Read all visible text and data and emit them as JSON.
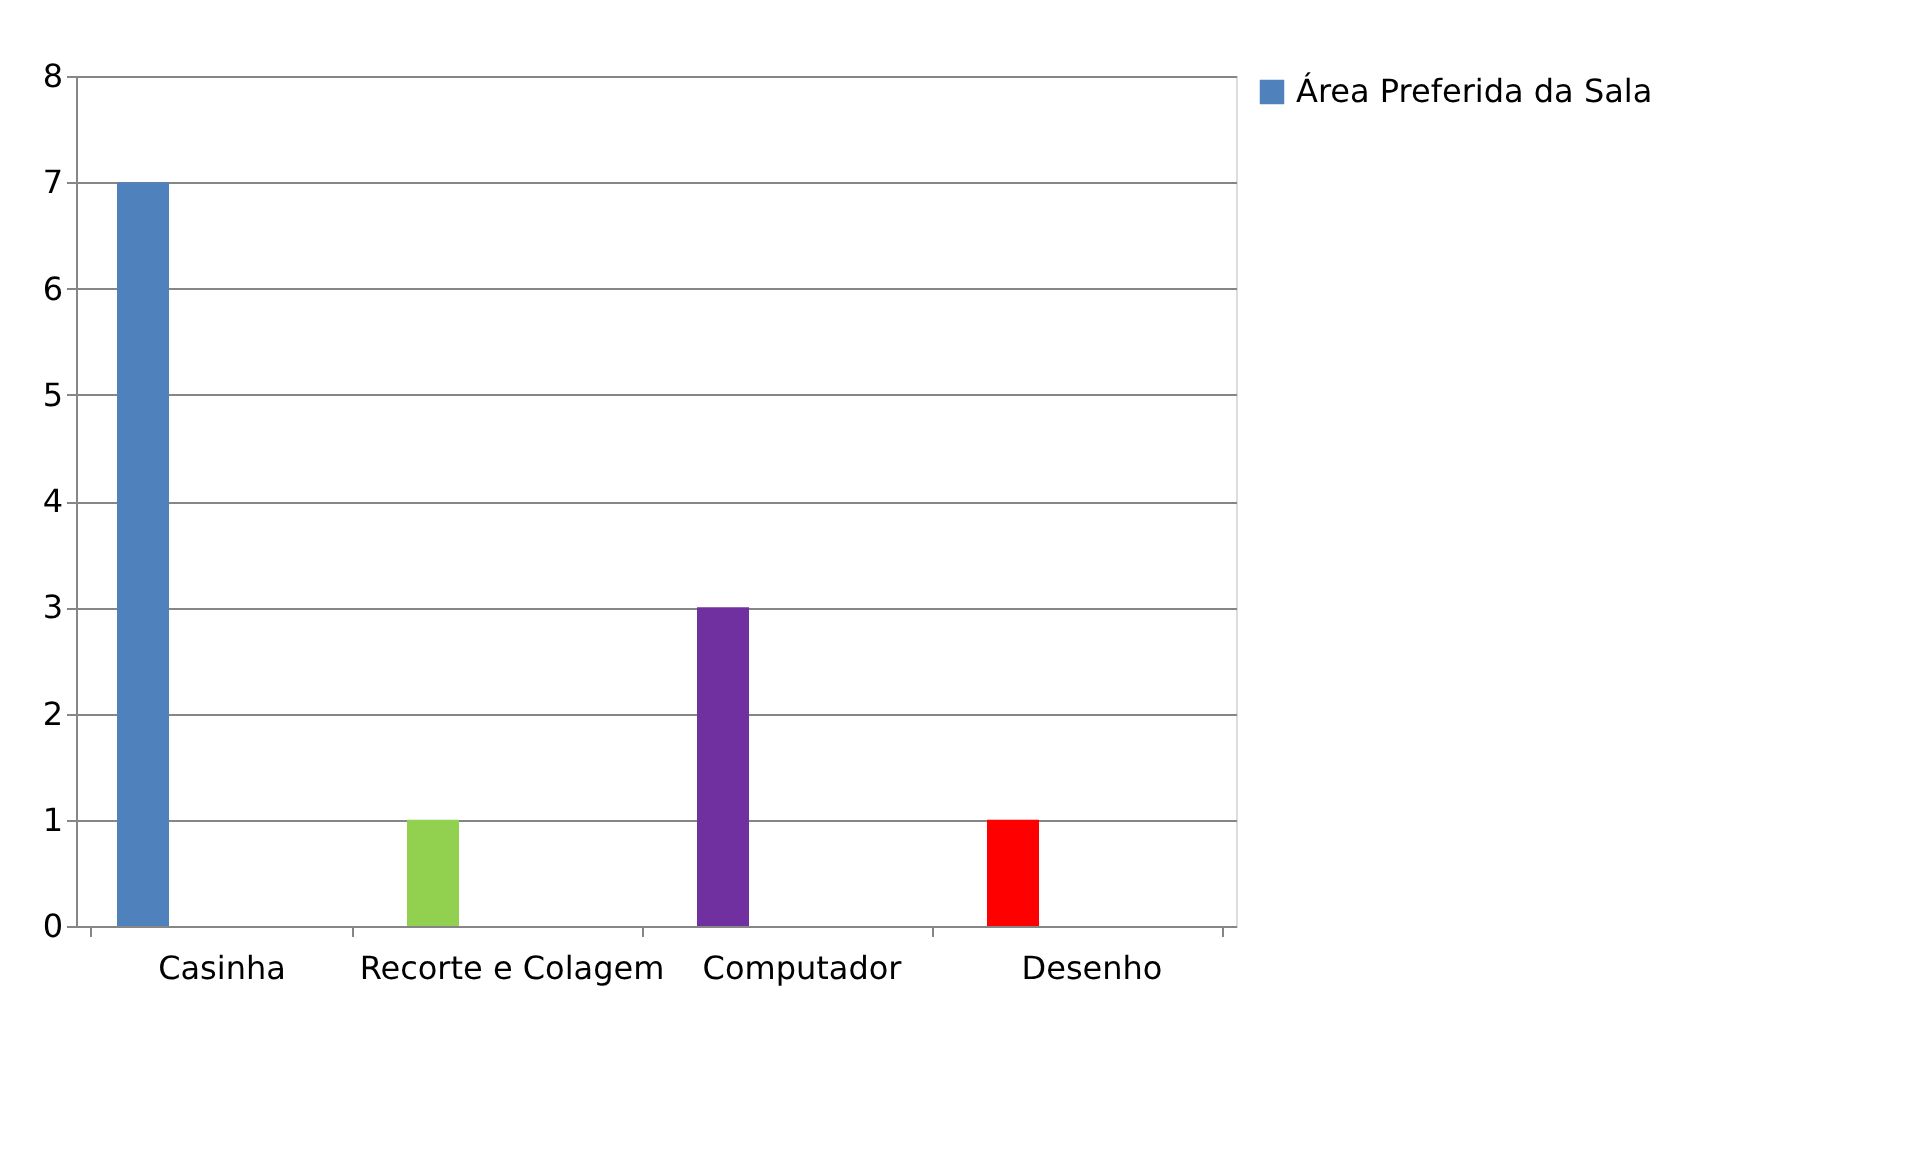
{
  "chart_data": {
    "type": "bar",
    "categories": [
      "Casinha",
      "Recorte e Colagem",
      "Computador",
      "Desenho"
    ],
    "series": [
      {
        "name": "Área Preferida da Sala",
        "color": "#4f81bd",
        "values": [
          7,
          1,
          3,
          1
        ],
        "colors": [
          "#4f81bd",
          "#92d050",
          "#7030a0",
          "#ff0000"
        ]
      }
    ],
    "ylim": [
      0,
      8
    ],
    "yticks": [
      0,
      1,
      2,
      3,
      4,
      5,
      6,
      7,
      8
    ],
    "grid": "y",
    "legend": "right"
  }
}
